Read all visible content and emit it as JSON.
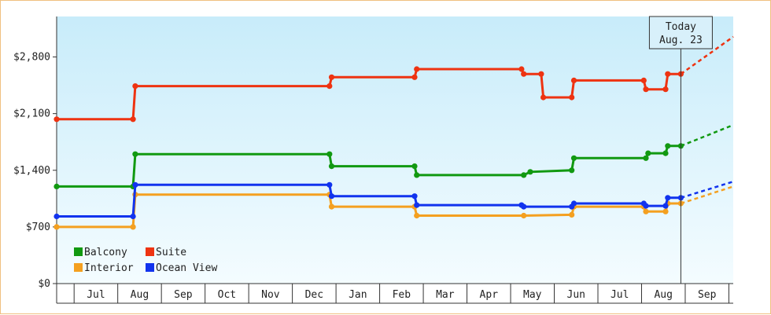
{
  "chart_data": {
    "type": "line",
    "step": true,
    "y_tick_labels": [
      "$0",
      "$700",
      "$1,400",
      "$2,100",
      "$2,800"
    ],
    "y_ticks": [
      0,
      700,
      1400,
      2100,
      2800
    ],
    "ylim": [
      0,
      3300
    ],
    "x_tick_labels": [
      "Jul",
      "Aug",
      "Sep",
      "Oct",
      "Nov",
      "Dec",
      "Jan",
      "Feb",
      "Mar",
      "Apr",
      "May",
      "Jun",
      "Jul",
      "Aug",
      "Sep"
    ],
    "xlim": [
      0,
      15.5
    ],
    "grid": false,
    "legend_position": "bottom-left",
    "today": {
      "title": "Today",
      "date": "Aug. 23",
      "x": 14.3
    },
    "colors": {
      "Balcony": "#119911",
      "Suite": "#ee3311",
      "Interior": "#f4a020",
      "Ocean View": "#1133ee"
    },
    "series": [
      {
        "name": "Balcony",
        "points": [
          [
            0,
            1200
          ],
          [
            1.75,
            1200
          ],
          [
            1.8,
            1600
          ],
          [
            6.25,
            1600
          ],
          [
            6.3,
            1450
          ],
          [
            8.2,
            1450
          ],
          [
            8.25,
            1340
          ],
          [
            10.7,
            1340
          ],
          [
            10.85,
            1380
          ],
          [
            11.8,
            1400
          ],
          [
            11.85,
            1550
          ],
          [
            13.5,
            1550
          ],
          [
            13.55,
            1610
          ],
          [
            13.95,
            1610
          ],
          [
            14.0,
            1700
          ],
          [
            14.3,
            1700
          ]
        ],
        "projection": [
          [
            14.3,
            1700
          ],
          [
            15.5,
            1960
          ]
        ]
      },
      {
        "name": "Suite",
        "points": [
          [
            0,
            2030
          ],
          [
            1.75,
            2030
          ],
          [
            1.8,
            2440
          ],
          [
            6.25,
            2440
          ],
          [
            6.3,
            2550
          ],
          [
            8.2,
            2550
          ],
          [
            8.25,
            2650
          ],
          [
            10.65,
            2650
          ],
          [
            10.7,
            2590
          ],
          [
            11.1,
            2590
          ],
          [
            11.15,
            2300
          ],
          [
            11.8,
            2300
          ],
          [
            11.85,
            2510
          ],
          [
            13.45,
            2510
          ],
          [
            13.5,
            2400
          ],
          [
            13.95,
            2400
          ],
          [
            14.0,
            2590
          ],
          [
            14.3,
            2590
          ]
        ],
        "projection": [
          [
            14.3,
            2590
          ],
          [
            15.5,
            3050
          ]
        ]
      },
      {
        "name": "Interior",
        "points": [
          [
            0,
            700
          ],
          [
            1.75,
            700
          ],
          [
            1.8,
            1100
          ],
          [
            6.25,
            1100
          ],
          [
            6.3,
            950
          ],
          [
            8.2,
            950
          ],
          [
            8.25,
            840
          ],
          [
            10.7,
            840
          ],
          [
            11.8,
            850
          ],
          [
            11.85,
            950
          ],
          [
            13.45,
            950
          ],
          [
            13.5,
            890
          ],
          [
            13.95,
            890
          ],
          [
            14.0,
            990
          ],
          [
            14.3,
            990
          ]
        ],
        "projection": [
          [
            14.3,
            990
          ],
          [
            15.5,
            1200
          ]
        ]
      },
      {
        "name": "Ocean View",
        "points": [
          [
            0,
            830
          ],
          [
            1.75,
            830
          ],
          [
            1.8,
            1220
          ],
          [
            6.25,
            1220
          ],
          [
            6.3,
            1080
          ],
          [
            8.2,
            1080
          ],
          [
            8.25,
            970
          ],
          [
            10.65,
            970
          ],
          [
            10.7,
            950
          ],
          [
            11.8,
            950
          ],
          [
            11.85,
            990
          ],
          [
            13.45,
            990
          ],
          [
            13.5,
            960
          ],
          [
            13.95,
            960
          ],
          [
            14.0,
            1060
          ],
          [
            14.3,
            1060
          ]
        ],
        "projection": [
          [
            14.3,
            1060
          ],
          [
            15.5,
            1260
          ]
        ]
      }
    ],
    "legend": [
      {
        "name": "Balcony"
      },
      {
        "name": "Suite"
      },
      {
        "name": "Interior"
      },
      {
        "name": "Ocean View"
      }
    ]
  }
}
